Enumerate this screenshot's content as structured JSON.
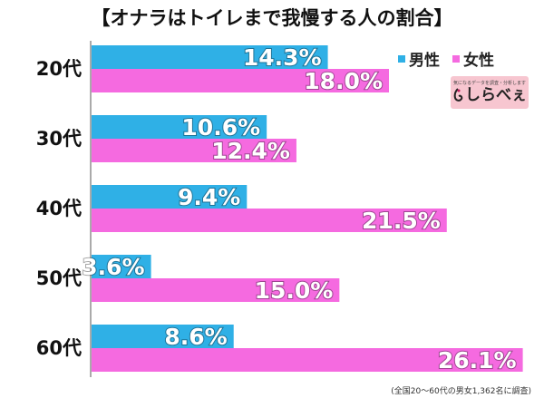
{
  "title": "【オナラはトイレまで我慢する人の割合】",
  "legend": {
    "male_label": "男性",
    "female_label": "女性"
  },
  "logo": {
    "tagline": "気になるデータを調査・分析します",
    "name": "しらべぇ"
  },
  "footnote": "(全国20～60代の男女1,362名に調査)",
  "colors": {
    "male": "#2fb0e6",
    "female": "#f56ae0",
    "axis": "#555555"
  },
  "chart_data": {
    "type": "bar",
    "orientation": "horizontal",
    "title": "【オナラはトイレまで我慢する人の割合】",
    "categories": [
      "20代",
      "30代",
      "40代",
      "50代",
      "60代"
    ],
    "series": [
      {
        "name": "男性",
        "values": [
          14.3,
          10.6,
          9.4,
          3.6,
          8.6
        ],
        "labels": [
          "14.3%",
          "10.6%",
          "9.4%",
          "3.6%",
          "8.6%"
        ]
      },
      {
        "name": "女性",
        "values": [
          18.0,
          12.4,
          21.5,
          15.0,
          26.1
        ],
        "labels": [
          "18.0%",
          "12.4%",
          "21.5%",
          "15.0%",
          "26.1%"
        ]
      }
    ],
    "xlim": [
      0,
      27
    ],
    "grid": false,
    "legend_position": "top-right",
    "unit": "%"
  }
}
